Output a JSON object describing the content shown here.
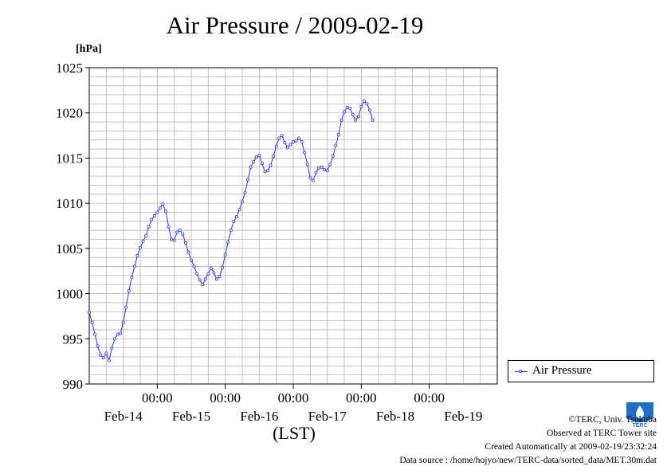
{
  "chart_data": {
    "type": "line",
    "title": "Air Pressure / 2009-02-19",
    "ylabel": "[hPa]",
    "xlabel": "(LST)",
    "ylim": [
      990,
      1025
    ],
    "yticks": [
      "990",
      "995",
      "1000",
      "1005",
      "1010",
      "1015",
      "1020",
      "1025"
    ],
    "x_hour_range": [
      0,
      144
    ],
    "time_labels": [
      "00:00",
      "00:00",
      "00:00",
      "00:00",
      "00:00"
    ],
    "date_labels": [
      "Feb-14",
      "Feb-15",
      "Feb-16",
      "Feb-17",
      "Feb-18",
      "Feb-19"
    ],
    "grid": true,
    "legend_position": "right",
    "series": [
      {
        "name": "Air Pressure",
        "color": "#3333ff",
        "points": [
          [
            0,
            997.9
          ],
          [
            1,
            996.8
          ],
          [
            2,
            995.5
          ],
          [
            3,
            994.2
          ],
          [
            4,
            993.2
          ],
          [
            5,
            992.9
          ],
          [
            6,
            993.4
          ],
          [
            7,
            992.6
          ],
          [
            8,
            994.0
          ],
          [
            9,
            995.0
          ],
          [
            10,
            995.5
          ],
          [
            11,
            995.6
          ],
          [
            12,
            996.8
          ],
          [
            13,
            998.5
          ],
          [
            14,
            1000.3
          ],
          [
            15,
            1001.8
          ],
          [
            16,
            1003.0
          ],
          [
            17,
            1004.2
          ],
          [
            18,
            1005.1
          ],
          [
            19,
            1005.8
          ],
          [
            20,
            1006.4
          ],
          [
            21,
            1007.4
          ],
          [
            22,
            1008.2
          ],
          [
            23,
            1008.6
          ],
          [
            24,
            1009.0
          ],
          [
            25,
            1009.5
          ],
          [
            26,
            1009.9
          ],
          [
            27,
            1009.1
          ],
          [
            28,
            1007.4
          ],
          [
            29,
            1006.0
          ],
          [
            30,
            1005.9
          ],
          [
            31,
            1006.8
          ],
          [
            32,
            1007.0
          ],
          [
            33,
            1006.6
          ],
          [
            34,
            1005.6
          ],
          [
            35,
            1004.6
          ],
          [
            36,
            1003.7
          ],
          [
            37,
            1003.0
          ],
          [
            38,
            1002.2
          ],
          [
            39,
            1001.5
          ],
          [
            40,
            1001.0
          ],
          [
            41,
            1001.6
          ],
          [
            42,
            1002.2
          ],
          [
            43,
            1002.8
          ],
          [
            44,
            1002.3
          ],
          [
            45,
            1001.6
          ],
          [
            46,
            1001.9
          ],
          [
            47,
            1002.9
          ],
          [
            48,
            1004.3
          ],
          [
            49,
            1005.7
          ],
          [
            50,
            1007.0
          ],
          [
            51,
            1008.0
          ],
          [
            52,
            1008.5
          ],
          [
            53,
            1009.3
          ],
          [
            54,
            1010.2
          ],
          [
            55,
            1011.2
          ],
          [
            56,
            1012.6
          ],
          [
            57,
            1014.0
          ],
          [
            58,
            1014.6
          ],
          [
            59,
            1015.1
          ],
          [
            60,
            1015.3
          ],
          [
            61,
            1014.4
          ],
          [
            62,
            1013.5
          ],
          [
            63,
            1013.6
          ],
          [
            64,
            1014.2
          ],
          [
            65,
            1015.2
          ],
          [
            66,
            1016.3
          ],
          [
            67,
            1017.2
          ],
          [
            68,
            1017.5
          ],
          [
            69,
            1016.7
          ],
          [
            70,
            1016.2
          ],
          [
            71,
            1016.5
          ],
          [
            72,
            1016.8
          ],
          [
            73,
            1016.9
          ],
          [
            74,
            1017.2
          ],
          [
            75,
            1016.8
          ],
          [
            76,
            1015.6
          ],
          [
            77,
            1014.3
          ],
          [
            78,
            1012.8
          ],
          [
            79,
            1012.5
          ],
          [
            80,
            1013.4
          ],
          [
            81,
            1013.9
          ],
          [
            82,
            1014.0
          ],
          [
            83,
            1013.7
          ],
          [
            84,
            1013.6
          ],
          [
            85,
            1014.3
          ],
          [
            86,
            1015.2
          ],
          [
            87,
            1016.4
          ],
          [
            88,
            1017.6
          ],
          [
            89,
            1019.2
          ],
          [
            90,
            1020.1
          ],
          [
            91,
            1020.6
          ],
          [
            92,
            1020.5
          ],
          [
            93,
            1019.8
          ],
          [
            94,
            1019.2
          ],
          [
            95,
            1019.6
          ],
          [
            96,
            1020.7
          ],
          [
            97,
            1021.3
          ],
          [
            98,
            1021.0
          ],
          [
            99,
            1020.3
          ],
          [
            100,
            1019.2
          ]
        ]
      }
    ]
  },
  "footer": {
    "copyright": "©TERC, Univ. Tsukuba",
    "observed": "Observed at TERC Tower site",
    "created": "Created Automatically at 2009-02-19/23:32:24",
    "source": "Data source : /home/hojyo/new/TERC-data/sorted_data/MET.30m.dat",
    "logo_text": "TERC"
  }
}
